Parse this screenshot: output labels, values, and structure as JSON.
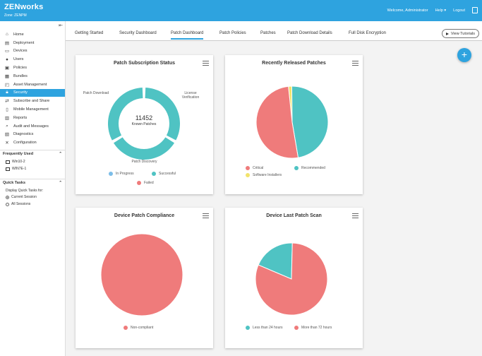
{
  "header": {
    "brand": "ZENworks",
    "zone": "Zone: ZENPM",
    "welcome": "Welcome, Administrator",
    "help": "Help",
    "logout": "Logout"
  },
  "sidebar": {
    "items": [
      {
        "label": "Home",
        "icon": "home-icon"
      },
      {
        "label": "Deployment",
        "icon": "deployment-icon"
      },
      {
        "label": "Devices",
        "icon": "devices-icon"
      },
      {
        "label": "Users",
        "icon": "users-icon"
      },
      {
        "label": "Policies",
        "icon": "policies-icon"
      },
      {
        "label": "Bundles",
        "icon": "bundles-icon"
      },
      {
        "label": "Asset Management",
        "icon": "asset-icon"
      },
      {
        "label": "Security",
        "icon": "lock-icon"
      },
      {
        "label": "Subscribe and Share",
        "icon": "subscribe-icon"
      },
      {
        "label": "Mobile Management",
        "icon": "mobile-icon"
      },
      {
        "label": "Reports",
        "icon": "reports-icon"
      },
      {
        "label": "Audit and Messages",
        "icon": "audit-icon"
      },
      {
        "label": "Diagnostics",
        "icon": "diagnostics-icon"
      },
      {
        "label": "Configuration",
        "icon": "configuration-icon"
      }
    ],
    "frequently_used": {
      "title": "Frequently Used",
      "items": [
        "Win10-2",
        "WIN7E-1"
      ]
    },
    "quick_tasks": {
      "title": "Quick Tasks",
      "display_label": "Display Quick Tasks for:",
      "options": [
        "Current Session",
        "All Sessions"
      ],
      "selected": "Current Session"
    }
  },
  "tabs": {
    "items": [
      "Getting Started",
      "Security Dashboard",
      "Patch Dashboard",
      "Patch Policies",
      "Patches",
      "Patch Download Details",
      "Full Disk Encryption"
    ],
    "active": "Patch Dashboard",
    "tutorials_label": "View Tutorials"
  },
  "colors": {
    "accent": "#2ea3df",
    "teal": "#4fc3c3",
    "red": "#ef7b7b",
    "yellow": "#f2e36b",
    "blue": "#7cbde8"
  },
  "chart_data": [
    {
      "type": "pie",
      "title": "Patch Subscription Status",
      "center_value": "11452",
      "center_label": "Known Patches",
      "segments": [
        {
          "name": "Patch Download",
          "value": 33.33
        },
        {
          "name": "License Verification",
          "value": 33.33
        },
        {
          "name": "Patch Discovery",
          "value": 33.34
        }
      ],
      "legend": [
        "In Progress",
        "Successful",
        "Failed"
      ]
    },
    {
      "type": "pie",
      "title": "Recently Released Patches",
      "slices": [
        {
          "name": "Critical",
          "value": 51
        },
        {
          "name": "Recommended",
          "value": 47.5
        },
        {
          "name": "Software Installers",
          "value": 1.5
        }
      ]
    },
    {
      "type": "pie",
      "title": "Device Patch Compliance",
      "slices": [
        {
          "name": "Non-compliant",
          "value": 100
        }
      ]
    },
    {
      "type": "pie",
      "title": "Device Last Patch Scan",
      "slices": [
        {
          "name": "Less than 24 hours",
          "value": 19
        },
        {
          "name": "More than 72 hours",
          "value": 81
        }
      ]
    }
  ]
}
